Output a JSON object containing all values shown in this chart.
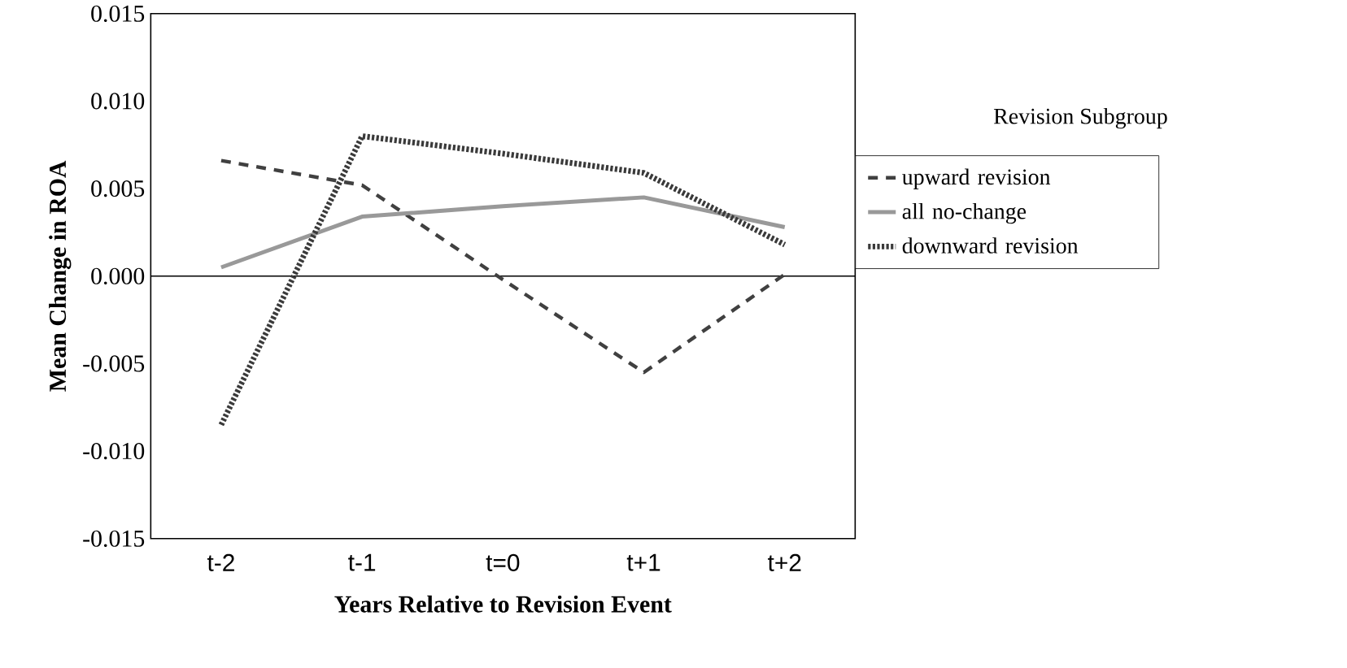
{
  "chart_data": {
    "type": "line",
    "xlabel": "Years Relative to Revision Event",
    "ylabel": "Mean Change in ROA",
    "legend_title": "Revision Subgroup",
    "categories": [
      "t-2",
      "t-1",
      "t=0",
      "t+1",
      "t+2"
    ],
    "ylim": [
      -0.015,
      0.015
    ],
    "yticks": [
      {
        "value": -0.015,
        "label": "-0.015"
      },
      {
        "value": -0.01,
        "label": "-0.010"
      },
      {
        "value": -0.005,
        "label": "-0.005"
      },
      {
        "value": 0,
        "label": "0.000"
      },
      {
        "value": 0.005,
        "label": "0.005"
      },
      {
        "value": 0.01,
        "label": "0.010"
      },
      {
        "value": 0.015,
        "label": "0.015"
      }
    ],
    "series": [
      {
        "name": "upward revision",
        "color": "#404040",
        "line_style": "dashed",
        "values": [
          0.0066,
          0.0052,
          -0.0002,
          -0.0055,
          0.0001
        ]
      },
      {
        "name": "all no-change",
        "color": "#999999",
        "line_style": "solid",
        "values": [
          0.0005,
          0.0034,
          0.004,
          0.0045,
          0.0028
        ]
      },
      {
        "name": "downward revision",
        "color": "#3a3a3a",
        "line_style": "dotted",
        "values": [
          -0.0085,
          0.008,
          0.007,
          0.0059,
          0.0018
        ]
      }
    ],
    "ref_lines": [
      {
        "axis": "y",
        "value": 0,
        "color": "#000000"
      }
    ],
    "legend": "right",
    "grid": false,
    "marker": "none"
  }
}
